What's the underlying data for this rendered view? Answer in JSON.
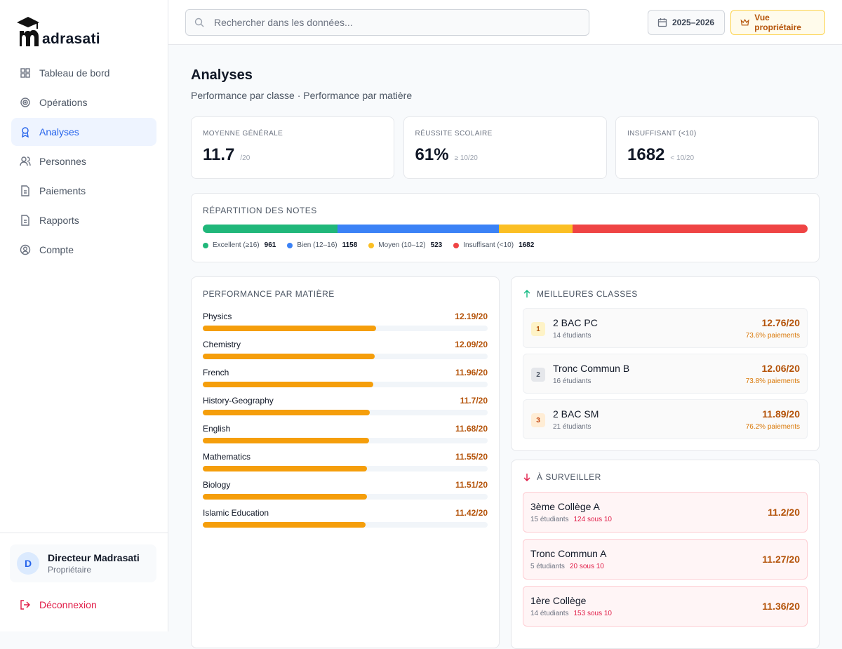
{
  "sidebar": {
    "logo": "adrasati",
    "nav": [
      "Tableau de bord",
      "Opérations",
      "Analyses",
      "Personnes",
      "Paiements",
      "Rapports",
      "Compte"
    ],
    "user": {
      "initial": "D",
      "name": "Directeur Madrasati",
      "role": "Propriétaire"
    },
    "logout": "Déconnexion"
  },
  "header": {
    "search_placeholder": "Rechercher dans les données...",
    "year": "2025–2026",
    "owner_view": "Vue propriétaire"
  },
  "page": {
    "title": "Analyses",
    "subtitle": "Performance par classe · Performance par matière"
  },
  "kpis": [
    {
      "label": "MOYENNE GÉNÉRALE",
      "value": "11.7",
      "suffix": "/20"
    },
    {
      "label": "RÉUSSITE SCOLAIRE",
      "value": "61%",
      "suffix": "≥ 10/20"
    },
    {
      "label": "INSUFFISANT (<10)",
      "value": "1682",
      "suffix": "< 10/20"
    }
  ],
  "distribution": {
    "title": "RÉPARTITION DES NOTES",
    "series": [
      {
        "name": "Excellent (≥16)",
        "color": "#20b77a",
        "value": 961
      },
      {
        "name": "Bien (12–16)",
        "color": "#3b82f6",
        "value": 1158
      },
      {
        "name": "Moyen (10–12)",
        "color": "#fbbf24",
        "value": 523
      },
      {
        "name": "Insuffisant (<10)",
        "color": "#ef4444",
        "value": 1682
      }
    ]
  },
  "subjects": {
    "title": "PERFORMANCE PAR MATIÈRE",
    "xlim": [
      0,
      20
    ],
    "color": "#f59e0b",
    "items": [
      {
        "name": "Physics",
        "value": 12.19,
        "value_label": "12.19/20"
      },
      {
        "name": "Chemistry",
        "value": 12.09,
        "value_label": "12.09/20"
      },
      {
        "name": "French",
        "value": 11.96,
        "value_label": "11.96/20"
      },
      {
        "name": "History-Geography",
        "value": 11.7,
        "value_label": "11.7/20"
      },
      {
        "name": "English",
        "value": 11.68,
        "value_label": "11.68/20"
      },
      {
        "name": "Mathematics",
        "value": 11.55,
        "value_label": "11.55/20"
      },
      {
        "name": "Biology",
        "value": 11.51,
        "value_label": "11.51/20"
      },
      {
        "name": "Islamic Education",
        "value": 11.42,
        "value_label": "11.42/20"
      }
    ]
  },
  "best_classes": {
    "title": "MEILLEURES CLASSES",
    "items": [
      {
        "rank": 1,
        "name": "2 BAC PC",
        "students": "14 étudiants",
        "average": "12.76/20",
        "payments": "73.6% paiements"
      },
      {
        "rank": 2,
        "name": "Tronc Commun B",
        "students": "16 étudiants",
        "average": "12.06/20",
        "payments": "73.8% paiements"
      },
      {
        "rank": 3,
        "name": "2 BAC SM",
        "students": "21 étudiants",
        "average": "11.89/20",
        "payments": "76.2% paiements"
      }
    ]
  },
  "watch": {
    "title": "À SURVEILLER",
    "items": [
      {
        "name": "3ème Collège A",
        "students": "15 étudiants",
        "below": "124 sous 10",
        "average": "11.2/20"
      },
      {
        "name": "Tronc Commun A",
        "students": "5 étudiants",
        "below": "20 sous 10",
        "average": "11.27/20"
      },
      {
        "name": "1ère Collège",
        "students": "14 étudiants",
        "below": "153 sous 10",
        "average": "11.36/20"
      }
    ]
  }
}
